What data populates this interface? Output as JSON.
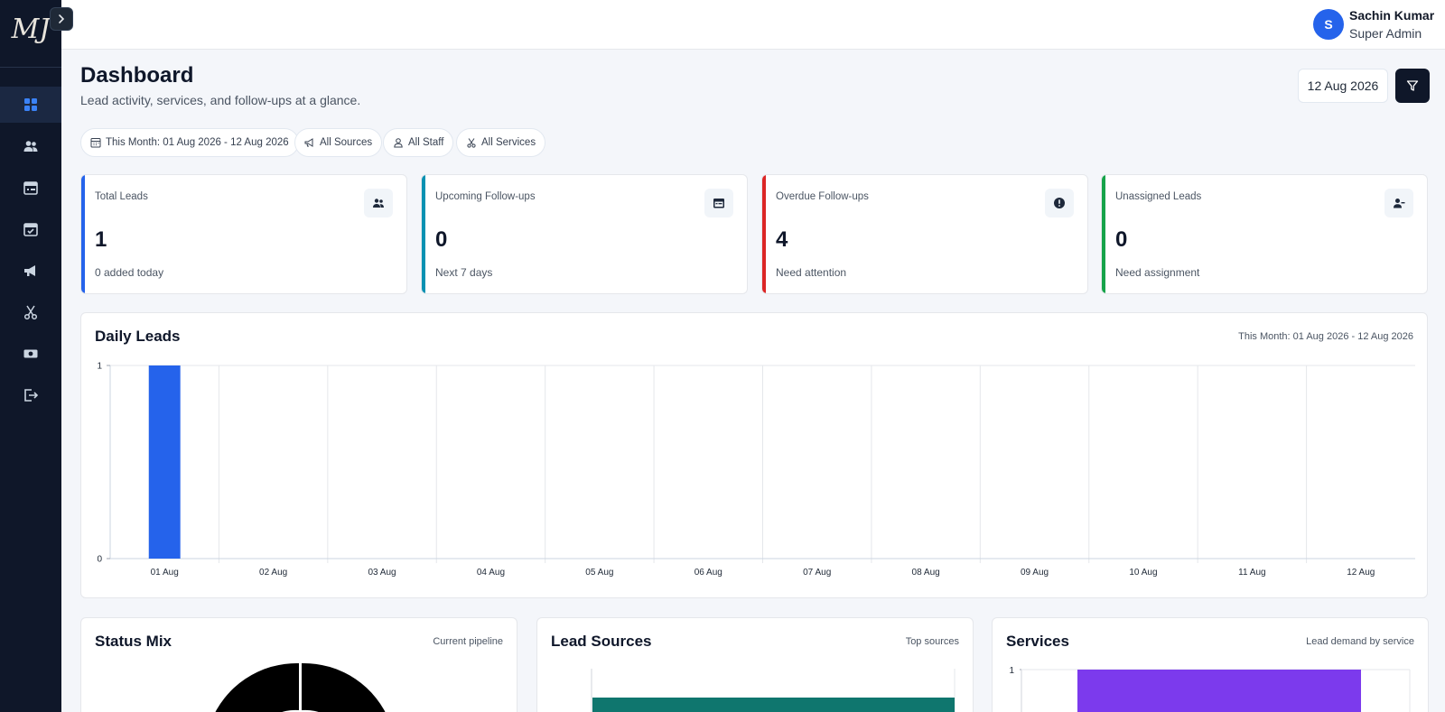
{
  "sidebar": {
    "logo_text": "MJ",
    "nav": [
      {
        "icon": "grid-icon",
        "active": true
      },
      {
        "icon": "users-icon",
        "active": false
      },
      {
        "icon": "calendar-list-icon",
        "active": false
      },
      {
        "icon": "calendar-check-icon",
        "active": false
      },
      {
        "icon": "megaphone-icon",
        "active": false
      },
      {
        "icon": "scissors-icon",
        "active": false
      },
      {
        "icon": "cash-icon",
        "active": false
      },
      {
        "icon": "logout-icon",
        "active": false
      }
    ]
  },
  "header": {
    "avatar_initial": "S",
    "user_name": "Sachin Kumar",
    "user_role": "Super Admin"
  },
  "page": {
    "title": "Dashboard",
    "subtitle": "Lead activity, services, and follow-ups at a glance.",
    "date": "12 Aug 2026"
  },
  "filters": {
    "period": "This Month: 01 Aug 2026 - 12 Aug 2026",
    "sources": "All Sources",
    "staff": "All Staff",
    "services": "All Services"
  },
  "kpis": [
    {
      "label": "Total Leads",
      "value": "1",
      "note": "0 added today",
      "color": "#2563eb",
      "icon": "users-icon"
    },
    {
      "label": "Upcoming Follow-ups",
      "value": "0",
      "note": "Next 7 days",
      "color": "#0891b2",
      "icon": "calendar-list-icon"
    },
    {
      "label": "Overdue Follow-ups",
      "value": "4",
      "note": "Need attention",
      "color": "#dc2626",
      "icon": "alert-icon"
    },
    {
      "label": "Unassigned Leads",
      "value": "0",
      "note": "Need assignment",
      "color": "#16a34a",
      "icon": "user-minus-icon"
    }
  ],
  "daily_leads": {
    "title": "Daily Leads",
    "range": "This Month: 01 Aug 2026 - 12 Aug 2026"
  },
  "status_mix": {
    "title": "Status Mix",
    "meta": "Current pipeline"
  },
  "lead_sources": {
    "title": "Lead Sources",
    "meta": "Top sources"
  },
  "services": {
    "title": "Services",
    "meta": "Lead demand by service"
  },
  "chart_data": [
    {
      "type": "bar",
      "title": "Daily Leads",
      "categories": [
        "01 Aug",
        "02 Aug",
        "03 Aug",
        "04 Aug",
        "05 Aug",
        "06 Aug",
        "07 Aug",
        "08 Aug",
        "09 Aug",
        "10 Aug",
        "11 Aug",
        "12 Aug"
      ],
      "values": [
        1,
        0,
        0,
        0,
        0,
        0,
        0,
        0,
        0,
        0,
        0,
        0
      ],
      "ylim": [
        0,
        1
      ],
      "yticks": [
        "0",
        "1"
      ],
      "color": "#2563eb",
      "grid": true
    },
    {
      "type": "pie",
      "title": "Status Mix",
      "note": "partially visible donut chart"
    },
    {
      "type": "bar",
      "title": "Lead Sources",
      "color": "#0f766e",
      "note": "partially visible horizontal bar"
    },
    {
      "type": "bar",
      "title": "Services",
      "yticks": [
        "1"
      ],
      "color": "#7c3aed",
      "note": "partially visible bar"
    }
  ]
}
